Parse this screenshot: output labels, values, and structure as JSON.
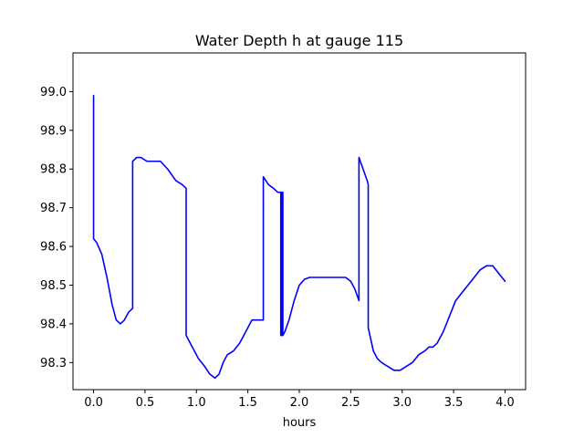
{
  "chart_data": {
    "type": "line",
    "title": "Water Depth h at gauge 115",
    "xlabel": "hours",
    "ylabel": "",
    "xlim": [
      -0.2,
      4.2
    ],
    "ylim": [
      98.23,
      99.1
    ],
    "x_ticks": [
      0.0,
      0.5,
      1.0,
      1.5,
      2.0,
      2.5,
      3.0,
      3.5,
      4.0
    ],
    "x_tick_labels": [
      "0.0",
      "0.5",
      "1.0",
      "1.5",
      "2.0",
      "2.5",
      "3.0",
      "3.5",
      "4.0"
    ],
    "y_ticks": [
      98.3,
      98.4,
      98.5,
      98.6,
      98.7,
      98.8,
      98.9,
      99.0
    ],
    "y_tick_labels": [
      "98.3",
      "98.4",
      "98.5",
      "98.6",
      "98.7",
      "98.8",
      "98.9",
      "99.0"
    ],
    "grid": false,
    "series": [
      {
        "color": "#0000ff",
        "x": [
          0.0,
          0.0,
          0.03,
          0.08,
          0.13,
          0.18,
          0.22,
          0.26,
          0.3,
          0.34,
          0.38,
          0.38,
          0.42,
          0.46,
          0.52,
          0.58,
          0.65,
          0.72,
          0.8,
          0.86,
          0.9,
          0.9,
          0.96,
          1.02,
          1.08,
          1.13,
          1.18,
          1.22,
          1.26,
          1.3,
          1.36,
          1.42,
          1.48,
          1.54,
          1.6,
          1.65,
          1.65,
          1.7,
          1.75,
          1.79,
          1.82,
          1.82,
          1.83,
          1.83,
          1.84,
          1.84,
          1.86,
          1.9,
          1.95,
          2.0,
          2.05,
          2.1,
          2.15,
          2.25,
          2.3,
          2.35,
          2.4,
          2.45,
          2.5,
          2.54,
          2.58,
          2.58,
          2.62,
          2.66,
          2.67,
          2.67,
          2.72,
          2.76,
          2.8,
          2.86,
          2.92,
          2.98,
          3.04,
          3.1,
          3.16,
          3.22,
          3.26,
          3.3,
          3.34,
          3.4,
          3.46,
          3.52,
          3.58,
          3.64,
          3.7,
          3.76,
          3.82,
          3.88,
          3.94,
          4.0
        ],
        "y": [
          98.99,
          98.62,
          98.61,
          98.58,
          98.52,
          98.45,
          98.41,
          98.4,
          98.41,
          98.43,
          98.44,
          98.82,
          98.83,
          98.83,
          98.82,
          98.82,
          98.82,
          98.8,
          98.77,
          98.76,
          98.75,
          98.37,
          98.34,
          98.31,
          98.29,
          98.27,
          98.26,
          98.27,
          98.3,
          98.32,
          98.33,
          98.35,
          98.38,
          98.41,
          98.41,
          98.41,
          98.78,
          98.76,
          98.75,
          98.74,
          98.74,
          98.37,
          98.74,
          98.37,
          98.74,
          98.37,
          98.38,
          98.41,
          98.46,
          98.5,
          98.515,
          98.52,
          98.52,
          98.52,
          98.52,
          98.52,
          98.52,
          98.52,
          98.51,
          98.49,
          98.46,
          98.83,
          98.8,
          98.77,
          98.76,
          98.39,
          98.33,
          98.31,
          98.3,
          98.29,
          98.28,
          98.28,
          98.29,
          98.3,
          98.32,
          98.33,
          98.34,
          98.34,
          98.35,
          98.38,
          98.42,
          98.46,
          98.48,
          98.5,
          98.52,
          98.54,
          98.55,
          98.55,
          98.53,
          98.51
        ]
      }
    ]
  }
}
